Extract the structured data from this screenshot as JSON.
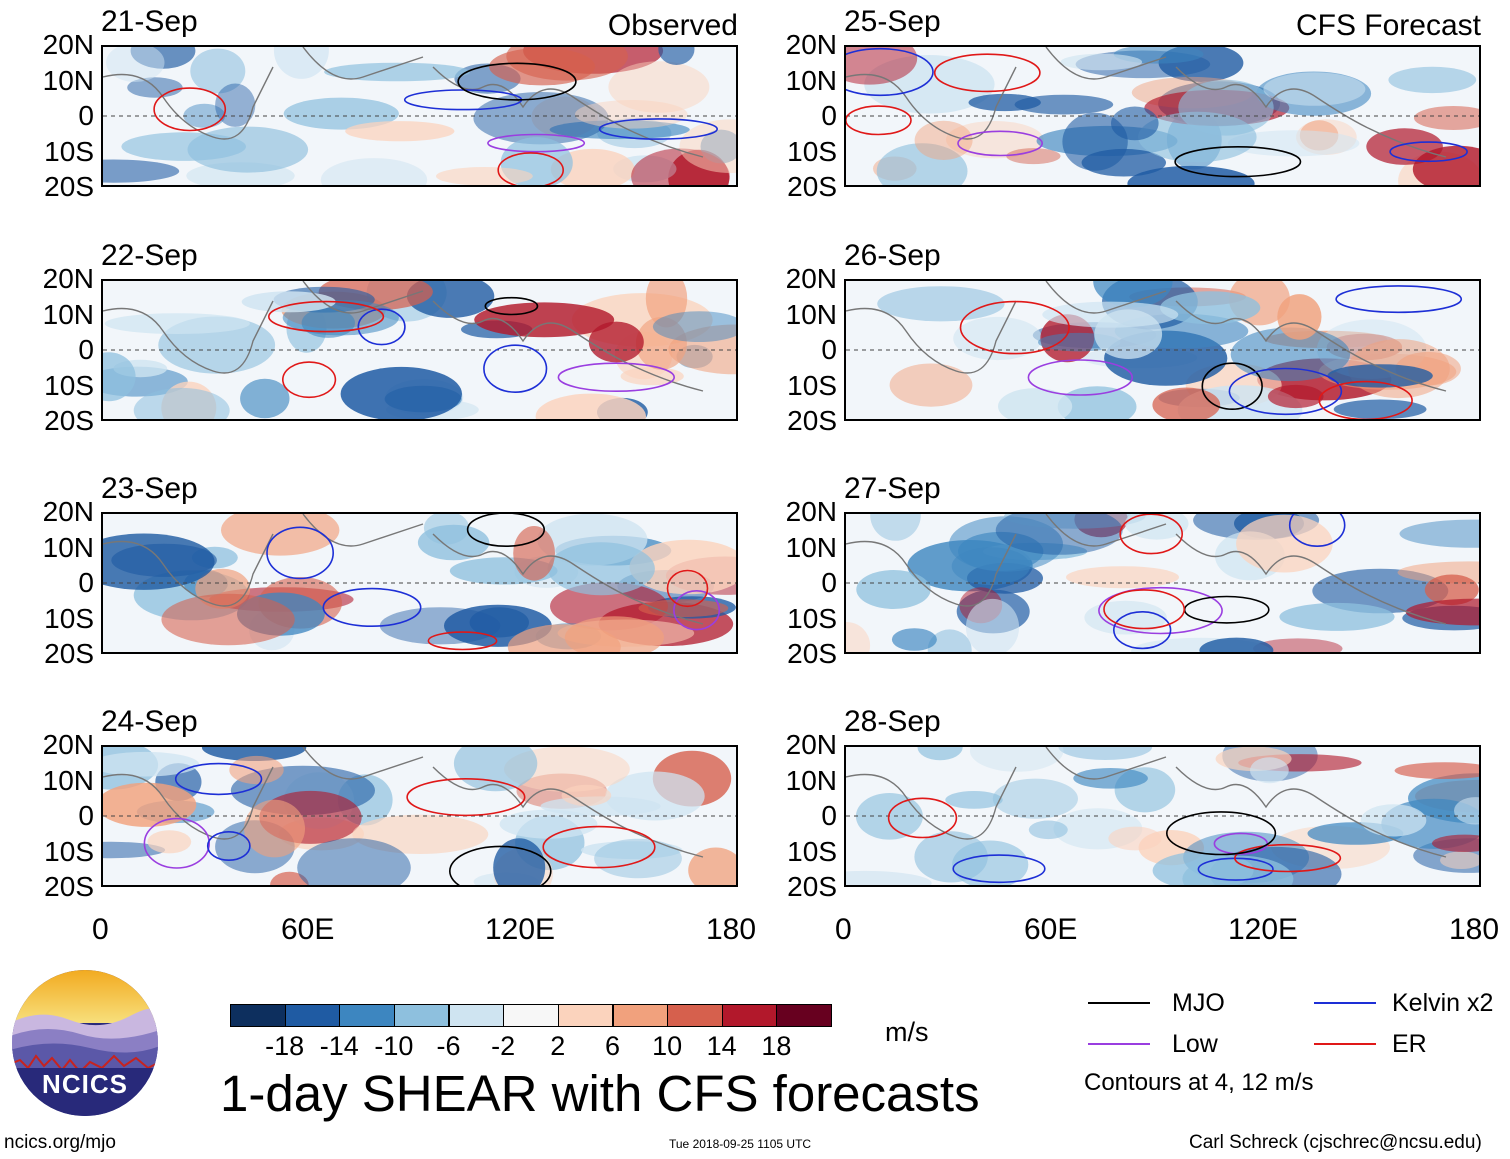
{
  "panels": [
    {
      "date": "21-Sep",
      "label": "Observed"
    },
    {
      "date": "22-Sep",
      "label": ""
    },
    {
      "date": "23-Sep",
      "label": ""
    },
    {
      "date": "24-Sep",
      "label": ""
    },
    {
      "date": "25-Sep",
      "label": "CFS Forecast"
    },
    {
      "date": "26-Sep",
      "label": ""
    },
    {
      "date": "27-Sep",
      "label": ""
    },
    {
      "date": "28-Sep",
      "label": ""
    }
  ],
  "lat_labels": [
    "20N",
    "10N",
    "0",
    "10S",
    "20S"
  ],
  "lon_labels": [
    "0",
    "60E",
    "120E",
    "180"
  ],
  "colorbar": {
    "colors": [
      "#0d2f5e",
      "#1f5ba3",
      "#3d86c0",
      "#8ec0de",
      "#cfe4f1",
      "#f7f7f7",
      "#fbd3bd",
      "#f1a17d",
      "#d6604d",
      "#b2182b",
      "#67001f"
    ],
    "labels": [
      "-18",
      "-14",
      "-10",
      "-6",
      "-2",
      "2",
      "6",
      "10",
      "14",
      "18"
    ],
    "units": "m/s"
  },
  "title": "1-day SHEAR with CFS forecasts",
  "legend": {
    "items": [
      {
        "name": "MJO",
        "color": "#000000"
      },
      {
        "name": "Kelvin x2",
        "color": "#1d2fd6"
      },
      {
        "name": "Low",
        "color": "#9a3ee0"
      },
      {
        "name": "ER",
        "color": "#e01818"
      }
    ],
    "note": "Contours at 4, 12 m/s"
  },
  "logo": {
    "text": "NCICS"
  },
  "footer": {
    "url": "ncics.org/mjo",
    "timestamp": "Tue 2018-09-25 1105 UTC",
    "credit": "Carl Schreck (cjschrec@ncsu.edu)"
  }
}
